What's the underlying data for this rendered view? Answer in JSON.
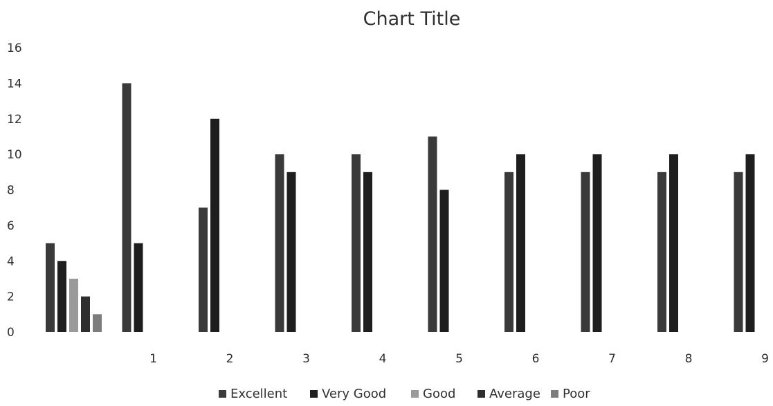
{
  "chart_data": {
    "type": "bar",
    "title": "Chart Title",
    "xlabel": "",
    "ylabel": "",
    "ylim": [
      0,
      16
    ],
    "yticks": [
      0,
      2,
      4,
      6,
      8,
      10,
      12,
      14,
      16
    ],
    "grid": false,
    "legend_position": "bottom",
    "categories": [
      "",
      "1",
      "2",
      "3",
      "4",
      "5",
      "6",
      "7",
      "8",
      "9"
    ],
    "series": [
      {
        "name": "Excellent",
        "color": "#3a3a3a",
        "values": [
          5,
          14,
          7,
          10,
          10,
          11,
          9,
          9,
          9,
          9
        ]
      },
      {
        "name": "Very Good",
        "color": "#1e1e1e",
        "values": [
          4,
          5,
          12,
          9,
          9,
          8,
          10,
          10,
          10,
          10
        ]
      },
      {
        "name": "Good",
        "color": "#9a9a9a",
        "values": [
          3,
          0,
          0,
          0,
          0,
          0,
          0,
          0,
          0,
          0
        ]
      },
      {
        "name": "Average",
        "color": "#2e2e2e",
        "values": [
          2,
          0,
          0,
          0,
          0,
          0,
          0,
          0,
          0,
          0
        ]
      },
      {
        "name": "Poor",
        "color": "#7c7c7c",
        "values": [
          1,
          0,
          0,
          0,
          0,
          0,
          0,
          0,
          0,
          0
        ]
      }
    ]
  }
}
